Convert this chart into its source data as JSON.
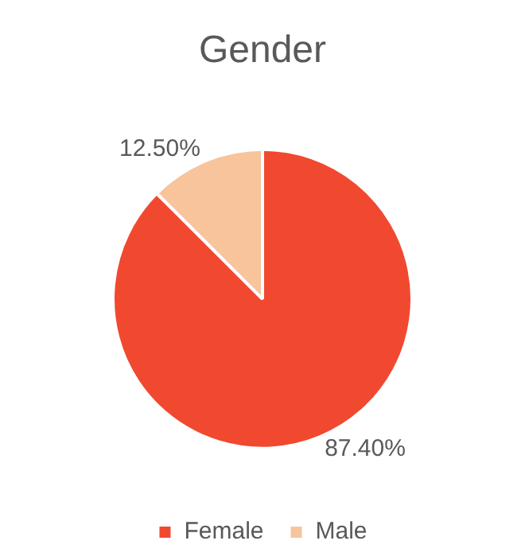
{
  "chart_data": {
    "type": "pie",
    "title": "Gender",
    "categories": [
      "Female",
      "Male"
    ],
    "values": [
      87.4,
      12.5
    ],
    "colors": [
      "#f0492f",
      "#f8c49c"
    ],
    "value_labels": [
      "87.40%",
      "12.50%"
    ],
    "legend": "bottom"
  }
}
